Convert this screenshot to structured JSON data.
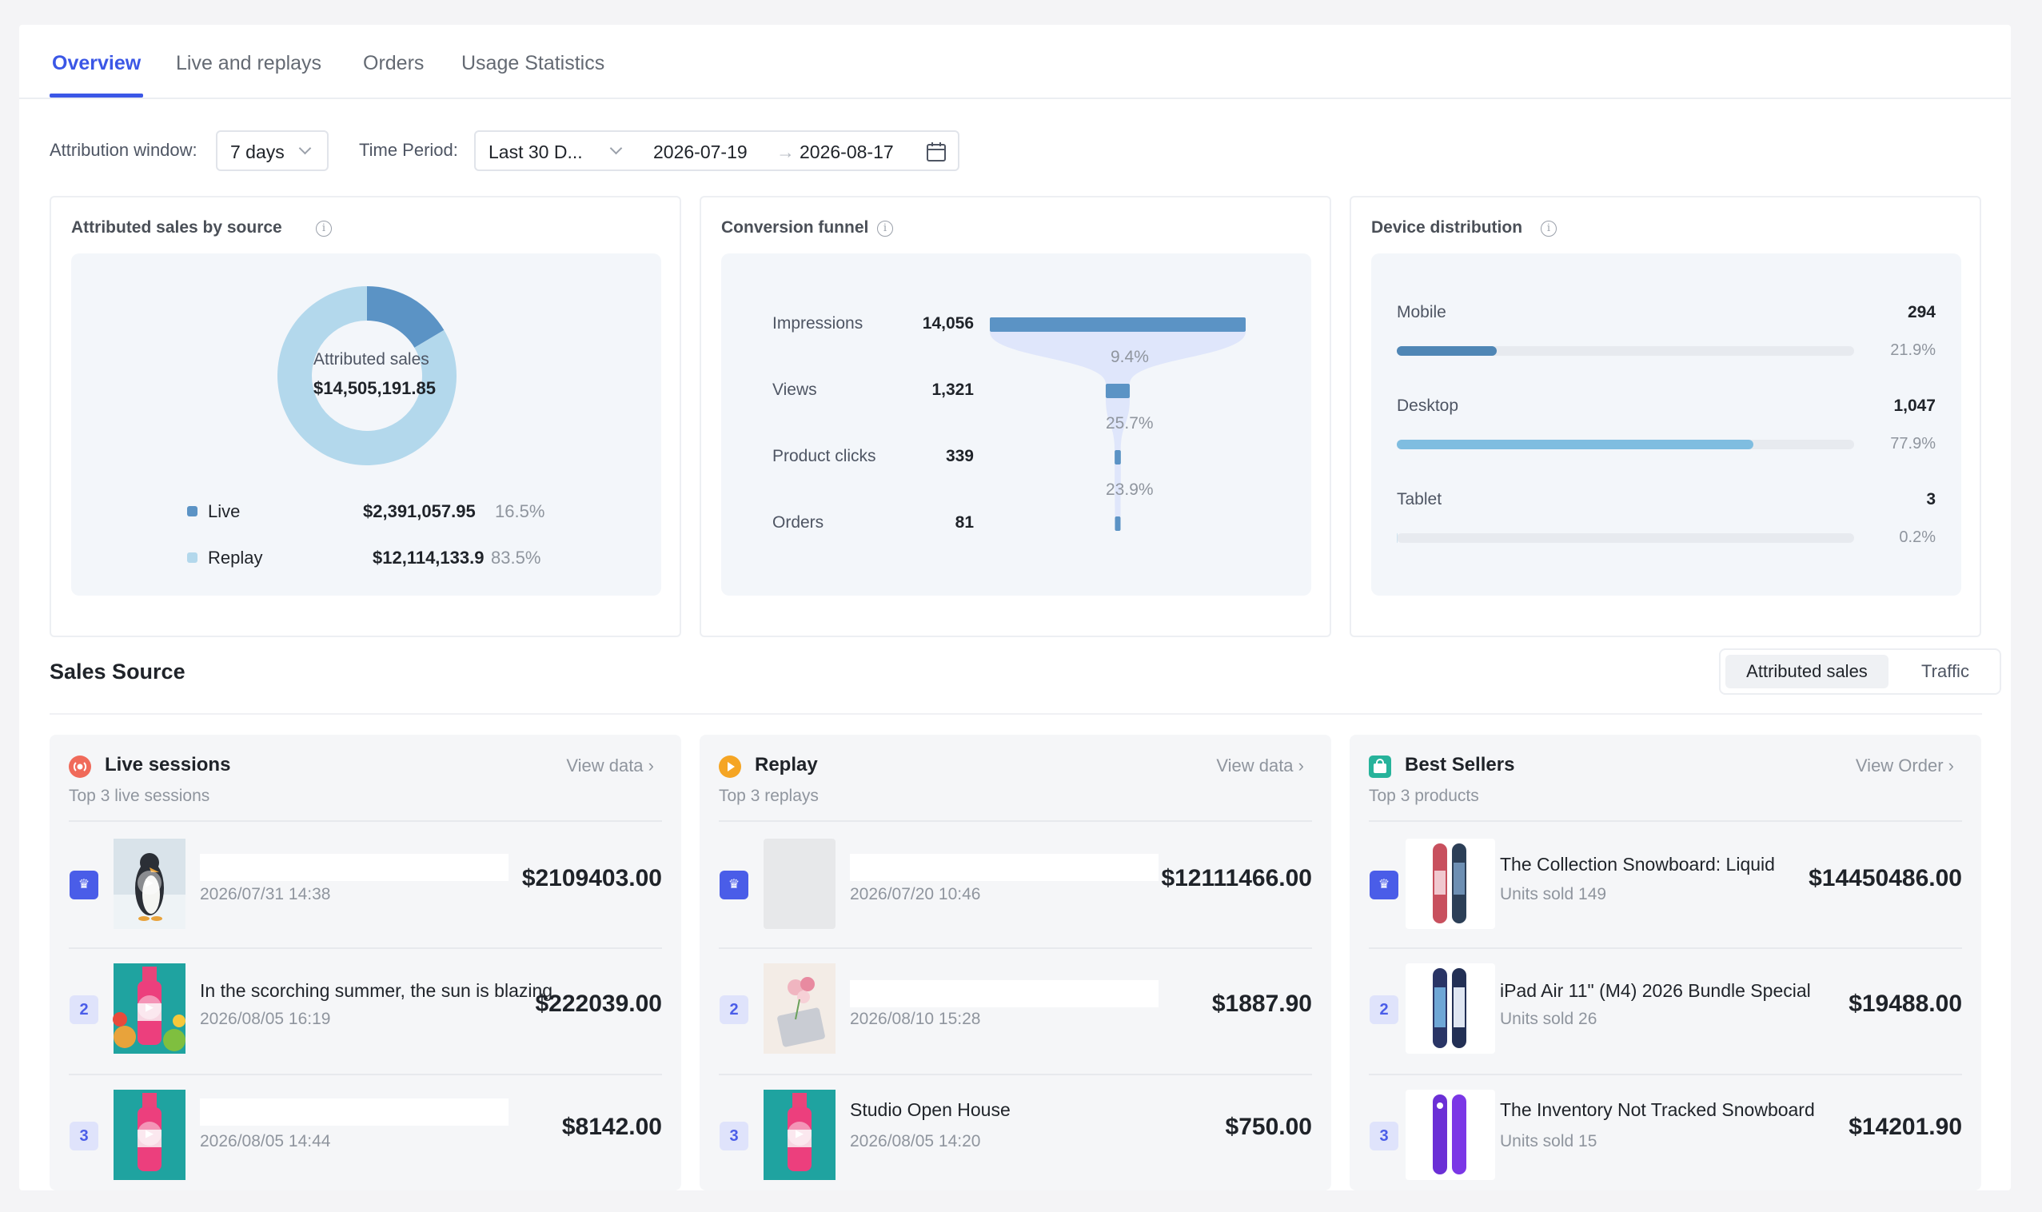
{
  "tabs": [
    {
      "label": "Overview",
      "active": true
    },
    {
      "label": "Live and replays",
      "active": false
    },
    {
      "label": "Orders",
      "active": false
    },
    {
      "label": "Usage Statistics",
      "active": false
    }
  ],
  "filters": {
    "attribution_label": "Attribution window:",
    "attribution_value": "7 days",
    "period_label": "Time Period:",
    "period_value": "Last 30 D...",
    "start_date": "2026-07-19",
    "arrow": "→",
    "end_date": "2026-08-17"
  },
  "attributed_sales": {
    "title": "Attributed sales by source",
    "center_label": "Attributed sales",
    "center_value": "$14,505,191.85",
    "chart_data": {
      "type": "pie",
      "categories": [
        "Live",
        "Replay"
      ],
      "values": [
        2391057.95,
        12114133.9
      ],
      "colors": [
        "#5b93c5",
        "#b3d8ec"
      ]
    },
    "legend": [
      {
        "name": "Live",
        "value": "$2,391,057.95",
        "pct": "16.5%",
        "color": "#5b93c5"
      },
      {
        "name": "Replay",
        "value": "$12,114,133.9",
        "pct": "83.5%",
        "color": "#b3d8ec"
      }
    ]
  },
  "funnel": {
    "title": "Conversion funnel",
    "chart_data": {
      "type": "bar",
      "categories": [
        "Impressions",
        "Views",
        "Product clicks",
        "Orders"
      ],
      "values": [
        14056,
        1321,
        339,
        81
      ]
    },
    "steps": [
      {
        "label": "Impressions",
        "value": "14,056"
      },
      {
        "label": "Views",
        "value": "1,321"
      },
      {
        "label": "Product clicks",
        "value": "339"
      },
      {
        "label": "Orders",
        "value": "81"
      }
    ],
    "rates": [
      "9.4%",
      "25.7%",
      "23.9%"
    ],
    "bar_color": "#5b93c5"
  },
  "devices": {
    "title": "Device distribution",
    "chart_data": {
      "type": "bar",
      "categories": [
        "Mobile",
        "Desktop",
        "Tablet"
      ],
      "values": [
        294,
        1047,
        3
      ]
    },
    "items": [
      {
        "label": "Mobile",
        "value": "294",
        "pct": "21.9%",
        "fraction": 0.219,
        "color": "#4f86b5"
      },
      {
        "label": "Desktop",
        "value": "1,047",
        "pct": "77.9%",
        "fraction": 0.779,
        "color": "#7fbde0"
      },
      {
        "label": "Tablet",
        "value": "3",
        "pct": "0.2%",
        "fraction": 0.002,
        "color": "#cfe3ef"
      }
    ]
  },
  "sales_source": {
    "title": "Sales Source",
    "toggle": [
      "Attributed sales",
      "Traffic"
    ]
  },
  "live": {
    "title": "Live sessions",
    "link": "View data",
    "chevron": "›",
    "subtitle": "Top 3 live sessions",
    "items": [
      {
        "rank": "1",
        "title": "",
        "sub": "2026/07/31 14:38",
        "amount": "$2109403.00"
      },
      {
        "rank": "2",
        "title": "In the scorching summer, the sun is blazing",
        "sub": "2026/08/05 16:19",
        "amount": "$222039.00"
      },
      {
        "rank": "3",
        "title": "",
        "sub": "2026/08/05 14:44",
        "amount": "$8142.00"
      }
    ]
  },
  "replay": {
    "title": "Replay",
    "link": "View data",
    "chevron": "›",
    "subtitle": "Top 3 replays",
    "items": [
      {
        "rank": "1",
        "title": "",
        "sub": "2026/07/20 10:46",
        "amount": "$12111466.00"
      },
      {
        "rank": "2",
        "title": "",
        "sub": "2026/08/10 15:28",
        "amount": "$1887.90"
      },
      {
        "rank": "3",
        "title": "Studio Open House",
        "sub": "2026/08/05 14:20",
        "amount": "$750.00"
      }
    ]
  },
  "best": {
    "title": "Best Sellers",
    "link": "View Order",
    "chevron": "›",
    "subtitle": "Top 3 products",
    "items": [
      {
        "rank": "1",
        "title": "The Collection Snowboard: Liquid",
        "sub": "Units sold 149",
        "amount": "$14450486.00"
      },
      {
        "rank": "2",
        "title": "iPad Air 11\" (M4) 2026 Bundle Special",
        "sub": "Units sold 26",
        "amount": "$19488.00"
      },
      {
        "rank": "3",
        "title": "The Inventory Not Tracked Snowboard",
        "sub": "Units sold 15",
        "amount": "$14201.90"
      }
    ]
  },
  "crown_glyph": "♛",
  "play_glyph": "▶"
}
